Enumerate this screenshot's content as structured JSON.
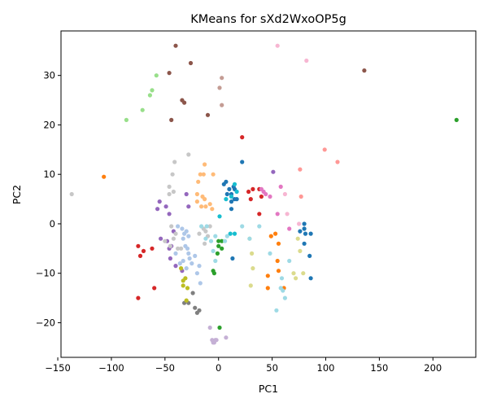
{
  "chart_data": {
    "type": "scatter",
    "title": "KMeans for sXd2WxoOP5g",
    "xlabel": "PC1",
    "ylabel": "PC2",
    "xlim": [
      -147,
      240
    ],
    "ylim": [
      -27,
      39
    ],
    "xticks": [
      -150,
      -100,
      -50,
      0,
      50,
      100,
      150,
      200
    ],
    "yticks": [
      -20,
      -10,
      0,
      10,
      20,
      30
    ],
    "grid": false,
    "legend": "none",
    "clusters": [
      {
        "color": "#1f77b4",
        "points": [
          [
            5,
            8
          ],
          [
            7,
            8.5
          ],
          [
            10,
            7
          ],
          [
            12,
            6
          ],
          [
            14,
            7.5
          ],
          [
            15,
            5
          ],
          [
            17,
            5
          ],
          [
            12,
            4.5
          ],
          [
            8,
            6
          ],
          [
            22,
            12.5
          ],
          [
            12,
            3
          ],
          [
            13,
            -7
          ],
          [
            80,
            0
          ],
          [
            80,
            -1
          ],
          [
            76,
            -1.5
          ],
          [
            81,
            -2
          ],
          [
            86,
            -2
          ],
          [
            80,
            -4
          ],
          [
            85,
            -6.5
          ],
          [
            86,
            -11
          ],
          [
            15,
            7
          ]
        ]
      },
      {
        "color": "#ff7f0e",
        "points": [
          [
            -107,
            9.5
          ],
          [
            53,
            -2
          ],
          [
            56,
            -4
          ],
          [
            49,
            -2.5
          ],
          [
            55,
            -7.5
          ],
          [
            56,
            -9.5
          ],
          [
            46,
            -10.5
          ],
          [
            46,
            -13
          ],
          [
            61,
            -13
          ]
        ]
      },
      {
        "color": "#2ca02c",
        "points": [
          [
            222,
            21
          ],
          [
            0,
            -3.5
          ],
          [
            3,
            -3.5
          ],
          [
            0,
            -4.5
          ],
          [
            3,
            -5
          ],
          [
            -1,
            -6
          ],
          [
            -5,
            -9.5
          ],
          [
            -4,
            -10
          ],
          [
            1,
            -21
          ]
        ]
      },
      {
        "color": "#d62728",
        "points": [
          [
            22,
            17.5
          ],
          [
            38,
            7
          ],
          [
            32,
            7
          ],
          [
            28,
            6.5
          ],
          [
            30,
            5
          ],
          [
            40,
            5.5
          ],
          [
            38,
            2
          ],
          [
            -75,
            -4.5
          ],
          [
            -62,
            -5
          ],
          [
            -70,
            -5.5
          ],
          [
            -73,
            -6.5
          ],
          [
            -60,
            -13
          ],
          [
            -75,
            -15
          ]
        ]
      },
      {
        "color": "#9467bd",
        "points": [
          [
            -55,
            4.5
          ],
          [
            -57,
            3
          ],
          [
            -49,
            3.5
          ],
          [
            -46,
            2
          ],
          [
            -42,
            -1.5
          ],
          [
            -30,
            6
          ],
          [
            -28,
            3.5
          ],
          [
            -54,
            -3
          ],
          [
            -48,
            -3.5
          ],
          [
            -46,
            -5
          ],
          [
            -44,
            -4.5
          ],
          [
            51,
            10.5
          ],
          [
            -45,
            -7
          ],
          [
            -40,
            -8.5
          ],
          [
            -34,
            -9.5
          ]
        ]
      },
      {
        "color": "#8c564b",
        "points": [
          [
            -40,
            36
          ],
          [
            -26,
            32.5
          ],
          [
            -46,
            30.5
          ],
          [
            136,
            31
          ],
          [
            -34,
            25
          ],
          [
            -32,
            24.5
          ],
          [
            -44,
            21
          ],
          [
            -10,
            22
          ]
        ]
      },
      {
        "color": "#e377c2",
        "points": [
          [
            40,
            7
          ],
          [
            42,
            6.5
          ],
          [
            44,
            6
          ],
          [
            48,
            5.5
          ],
          [
            58,
            7.5
          ],
          [
            55,
            2
          ],
          [
            66,
            -1
          ]
        ]
      },
      {
        "color": "#7f7f7f",
        "points": [
          [
            -32,
            -16
          ],
          [
            -28,
            -16
          ],
          [
            -24,
            -14
          ],
          [
            -22,
            -17
          ],
          [
            -20,
            -18
          ],
          [
            -18,
            -17.5
          ]
        ]
      },
      {
        "color": "#bcbd22",
        "points": [
          [
            -33,
            -11.5
          ],
          [
            -31,
            -11
          ],
          [
            -29,
            -13
          ],
          [
            -33,
            -12.5
          ],
          [
            -30,
            -15.5
          ],
          [
            -35,
            -9
          ]
        ]
      },
      {
        "color": "#17becf",
        "points": [
          [
            1,
            1.5
          ],
          [
            7,
            5
          ],
          [
            12,
            5.5
          ],
          [
            17,
            6.5
          ],
          [
            15,
            8
          ],
          [
            11,
            -2
          ],
          [
            15,
            -2
          ]
        ]
      },
      {
        "color": "#aec7e8",
        "points": [
          [
            -38,
            -0.5
          ],
          [
            -34,
            -1
          ],
          [
            -32,
            -2
          ],
          [
            -30,
            -1.5
          ],
          [
            -33,
            -3
          ],
          [
            -28,
            -2.5
          ],
          [
            -31,
            -4.5
          ],
          [
            -29,
            -5
          ],
          [
            -28,
            -6
          ],
          [
            -27,
            -7
          ],
          [
            -33,
            -7.5
          ],
          [
            -25,
            -8
          ],
          [
            -18,
            -8.5
          ],
          [
            -20,
            -10
          ],
          [
            -17,
            -12
          ],
          [
            -40,
            -6
          ],
          [
            -36,
            -8
          ],
          [
            -30,
            -9
          ],
          [
            -22,
            -6.5
          ]
        ]
      },
      {
        "color": "#ffbb78",
        "points": [
          [
            -13,
            12
          ],
          [
            -17,
            10
          ],
          [
            -14,
            10
          ],
          [
            -19,
            8.5
          ],
          [
            -20,
            6
          ],
          [
            -15,
            5.5
          ],
          [
            -13,
            5
          ],
          [
            -12,
            3.5
          ],
          [
            -16,
            3.5
          ],
          [
            -8,
            4
          ],
          [
            -6,
            3
          ],
          [
            -20,
            4.5
          ],
          [
            -5,
            10
          ]
        ]
      },
      {
        "color": "#98df8a",
        "points": [
          [
            -58,
            30
          ],
          [
            -62,
            27
          ],
          [
            -64,
            26
          ],
          [
            -71,
            23
          ],
          [
            -86,
            21
          ]
        ]
      },
      {
        "color": "#ff9896",
        "points": [
          [
            99,
            15
          ],
          [
            111,
            12.5
          ],
          [
            76,
            11
          ],
          [
            77,
            5.5
          ]
        ]
      },
      {
        "color": "#c5b0d5",
        "points": [
          [
            -6,
            -23.5
          ],
          [
            -3,
            -23.5
          ],
          [
            -2,
            -23.5
          ],
          [
            -5,
            -24
          ],
          [
            -4,
            -24
          ],
          [
            -8,
            -21
          ],
          [
            7,
            -23
          ]
        ]
      },
      {
        "color": "#c49c94",
        "points": [
          [
            1,
            27.5
          ],
          [
            3,
            29.5
          ],
          [
            3,
            24
          ]
        ]
      },
      {
        "color": "#f7b6d2",
        "points": [
          [
            55,
            36
          ],
          [
            82,
            33
          ],
          [
            62,
            6
          ],
          [
            64,
            2
          ],
          [
            75,
            0
          ]
        ]
      },
      {
        "color": "#c7c7c7",
        "points": [
          [
            -137,
            6
          ],
          [
            -41,
            12.5
          ],
          [
            -43,
            10
          ],
          [
            -46,
            7.5
          ],
          [
            -42,
            6.5
          ],
          [
            -46,
            6
          ],
          [
            -28,
            14
          ],
          [
            -44,
            -0.5
          ],
          [
            -40,
            -2
          ],
          [
            -42,
            -3
          ],
          [
            -50,
            -3.5
          ],
          [
            -45,
            -4.5
          ],
          [
            -38,
            -5
          ],
          [
            -35,
            -5
          ],
          [
            -10,
            -2.5
          ],
          [
            -8,
            -0.5
          ],
          [
            -12,
            -1.5
          ],
          [
            -14,
            -1
          ],
          [
            -13,
            -4
          ],
          [
            -18,
            -2
          ]
        ]
      },
      {
        "color": "#dbdb8d",
        "points": [
          [
            29,
            -3
          ],
          [
            31,
            -6
          ],
          [
            32,
            -9
          ],
          [
            74,
            -3
          ],
          [
            76,
            -5.5
          ],
          [
            70,
            -10
          ],
          [
            72,
            -11
          ],
          [
            79,
            -10
          ],
          [
            30,
            -12.5
          ]
        ]
      },
      {
        "color": "#9edae5",
        "points": [
          [
            38,
            -0.5
          ],
          [
            22,
            -0.5
          ],
          [
            29,
            -3
          ],
          [
            -16,
            -0.5
          ],
          [
            -11,
            -0.5
          ],
          [
            -12,
            -3
          ],
          [
            -5,
            -5.5
          ],
          [
            -3,
            -7.5
          ],
          [
            8,
            -2.5
          ],
          [
            6,
            -3.5
          ],
          [
            48,
            -6
          ],
          [
            59,
            -11
          ],
          [
            58,
            -13
          ],
          [
            60,
            -13.5
          ],
          [
            62,
            -15
          ],
          [
            54,
            -17.5
          ],
          [
            66,
            -7.5
          ],
          [
            -7,
            -3.5
          ],
          [
            -3,
            -2.5
          ]
        ]
      }
    ]
  }
}
